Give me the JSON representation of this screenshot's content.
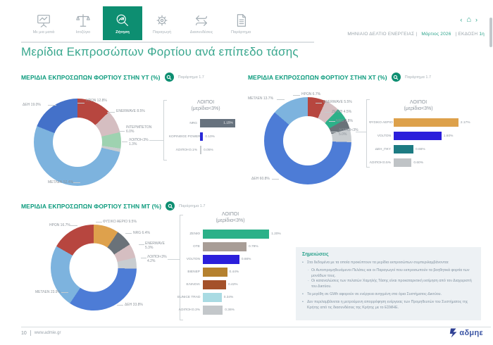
{
  "accent_colors": {
    "active_tab": "#0d8e71",
    "title_green": "#39a78e",
    "section_green": "#0c9b7d"
  },
  "nav": {
    "tabs": [
      {
        "label": "Με μια ματιά",
        "active": false
      },
      {
        "label": "Ισοζύγιο",
        "active": false
      },
      {
        "label": "Ζήτηση",
        "active": true
      },
      {
        "label": "Παραγωγή",
        "active": false
      },
      {
        "label": "Διασυνδέσεις",
        "active": false
      },
      {
        "label": "Παράρτημα",
        "active": false
      }
    ]
  },
  "header": {
    "prev": "‹",
    "home": "⌂",
    "next": "›",
    "bulletin": "ΜΗΝΙΑΙΟ ΔΕΛΤΙΟ  ΕΝΕΡΓΕΙΑΣ",
    "sep1": "|",
    "month": "Μάρτιος 2026",
    "sep2": "|",
    "edition_label": "ΕΚΔΟΣΗ",
    "edition_value": "1η"
  },
  "page": {
    "title": "Μερίδια Εκπροσώπων Φορτίου ανά επίπεδο τάσης"
  },
  "chart_data": [
    {
      "id": "yt-donut",
      "type": "pie",
      "title": "ΜΕΡΙΔΙΑ ΕΚΠΡΟΣΩΠΩΝ ΦΟΡΤΙΟΥ ΣΤΗΝ ΥΤ (%)",
      "appendix": "Παράρτημα 1.7",
      "segments": [
        {
          "name": "ΗΡΩΝ",
          "value": 12.8,
          "display": "ΗΡΩΝ 12.8%",
          "color": "#b7463f"
        },
        {
          "name": "ENERWAVE",
          "value": 8.5,
          "display": "ENERWAVE 8.5%",
          "color": "#d5bec1"
        },
        {
          "name": "ΙΝΤΕΡΜΠΕΤΟΝ",
          "value": 6.0,
          "display": "ΙΝΤΕΡΜΠΕΤΟΝ 6.0%",
          "color": "#9ed2b0"
        },
        {
          "name": "ΛΟΙΠΟΙ<3%",
          "value": 1.3,
          "display": "ΛΟΙΠΟΙ<3% 1.3%",
          "color": "#c9cdd0"
        },
        {
          "name": "ΜΕΤΛΕΝ",
          "value": 52.4,
          "display": "ΜΕΤΛΕΝ 52.4%",
          "color": "#7db3de"
        },
        {
          "name": "ΔΕΗ",
          "value": 19.0,
          "display": "ΔΕΗ 19.0%",
          "color": "#4471c9"
        }
      ]
    },
    {
      "id": "yt-bars",
      "type": "bar",
      "title": "ΛΟΙΠΟΙ",
      "subtitle": "(μερίδια<3%)",
      "xmax": 1.2,
      "items": [
        {
          "name": "NRG",
          "value": 1.15,
          "display": "1.15%",
          "color": "#67727e"
        },
        {
          "name": "ΚΟΡΙΝΘΟΣ POWER",
          "value": 0.1,
          "display": "0.10%",
          "color": "#2a2ad8"
        },
        {
          "name": "ΛΟΙΠΟΙ<0.1%",
          "value": 0.05,
          "display": "0.05%",
          "color": "#c6cacd"
        }
      ]
    },
    {
      "id": "xt-donut",
      "type": "pie",
      "title": "ΜΕΡΙΔΙΑ ΕΚΠΡΟΣΩΠΩΝ ΦΟΡΤΙΟΥ ΣΤΗΝ ΧΤ (%)",
      "appendix": "Παράρτημα 1.7",
      "segments": [
        {
          "name": "ΗΡΩΝ",
          "value": 6.7,
          "display": "ΗΡΩΝ 6.7%",
          "color": "#b7463f"
        },
        {
          "name": "ENERWAVE",
          "value": 5.5,
          "display": "ENERWAVE 5.5%",
          "color": "#d5bec1"
        },
        {
          "name": "ΖΕΝΙΘ",
          "value": 4.5,
          "display": "ΖΕΝΙΘ 4.5%",
          "color": "#2cb189"
        },
        {
          "name": "NRG",
          "value": 3.8,
          "display": "NRG 3.8%",
          "color": "#6a7279"
        },
        {
          "name": "ΛΟΙΠΟΙ<3%",
          "value": 5.0,
          "display": "ΛΟΙΠΟΙ<3% 5.0%",
          "color": "#c9cdd0"
        },
        {
          "name": "ΔΕΗ",
          "value": 60.8,
          "display": "ΔΕΗ 60.8%",
          "color": "#4d7cd6"
        },
        {
          "name": "ΜΕΤΛΕΝ",
          "value": 13.7,
          "display": "ΜΕΤΛΕΝ 13.7%",
          "color": "#7db3de"
        }
      ]
    },
    {
      "id": "xt-bars",
      "type": "bar",
      "title": "ΛΟΙΠΟΙ",
      "subtitle": "(μερίδια<3%)",
      "xmax": 2.36,
      "items": [
        {
          "name": "ΦΥΣΙΚΟ ΑΕΡΙΟ",
          "value": 2.17,
          "display": "2.17%",
          "color": "#dda14b"
        },
        {
          "name": "VOLTON",
          "value": 1.6,
          "display": "1.60%",
          "color": "#2b1fdb"
        },
        {
          "name": "ΔΕΗ_ΠΚΥ",
          "value": 0.66,
          "display": "0.66%",
          "color": "#1d7b82"
        },
        {
          "name": "ΛΟΙΠΟΙ<0.5%",
          "value": 0.6,
          "display": "0.60%",
          "color": "#bfc3c6"
        }
      ]
    },
    {
      "id": "mt-donut",
      "type": "pie",
      "title": "ΜΕΡΙΔΙΑ ΕΚΠΡΟΣΩΠΩΝ ΦΟΡΤΙΟΥ ΣΤΗΝ ΜΤ (%)",
      "appendix": "Παράρτημα 1.7",
      "segments": [
        {
          "name": "ΦΥΣΙΚΟ ΑΕΡΙΟ",
          "value": 9.5,
          "display": "ΦΥΣΙΚΟ ΑΕΡΙΟ 9.5%",
          "color": "#dea14c"
        },
        {
          "name": "NRG",
          "value": 6.4,
          "display": "NRG 6.4%",
          "color": "#6a7279"
        },
        {
          "name": "ENERWAVE",
          "value": 5.3,
          "display": "ENERWAVE 5.3%",
          "color": "#d5bec1"
        },
        {
          "name": "ΛΟΙΠΟΙ<3%",
          "value": 4.2,
          "display": "ΛΟΙΠΟΙ<3% 4.2%",
          "color": "#c9cdd0"
        },
        {
          "name": "ΔΕΗ",
          "value": 33.8,
          "display": "ΔΕΗ 33.8%",
          "color": "#4d7cd6"
        },
        {
          "name": "ΜΕΤΛΕΝ",
          "value": 23.9,
          "display": "ΜΕΤΛΕΝ 23.9%",
          "color": "#7db3de"
        },
        {
          "name": "ΗΡΩΝ",
          "value": 16.7,
          "display": "ΗΡΩΝ 16.7%",
          "color": "#b7463f"
        }
      ]
    },
    {
      "id": "mt-bars",
      "type": "bar",
      "title": "ΛΟΙΠΟΙ",
      "subtitle": "(μερίδια<3%)",
      "xmax": 1.35,
      "items": [
        {
          "name": "ΖΕΝΙΘ",
          "value": 1.2,
          "display": "1.20%",
          "color": "#2cb189"
        },
        {
          "name": "ΟΤΕ",
          "value": 0.79,
          "display": "0.79%",
          "color": "#a89d96"
        },
        {
          "name": "VOLTON",
          "value": 0.66,
          "display": "0.66%",
          "color": "#2b1fdb"
        },
        {
          "name": "ΒΙΕΝΕΡ",
          "value": 0.44,
          "display": "0.44%",
          "color": "#b5812f"
        },
        {
          "name": "ΕΛΙΝΟΙΛ",
          "value": 0.42,
          "display": "0.42%",
          "color": "#a4512a"
        },
        {
          "name": "EUNICE TRAD",
          "value": 0.34,
          "display": "0.34%",
          "color": "#a9dbe3"
        },
        {
          "name": "ΛΟΙΠΟΙ<0.3%",
          "value": 0.36,
          "display": "0.36%",
          "color": "#c3c7ca"
        }
      ]
    }
  ],
  "notes": {
    "heading": "Σημειώσεις",
    "bullet1": "Στα δεδομένα με τα οποία προκύπτουν τα μερίδια εκπροσώπων συμπεριλαμβάνονται:",
    "bullet1_sub1": "Οι Αυτοπρομηθευόμενοι Πελάτες και οι Παραγωγοί που εκπροσωπούν τα βοηθητικά φορτία των μονάδων τους.",
    "bullet1_sub2": "Οι καταναλώσεις των πελατών Χαμηλής Τάσης είναι προκαταρκτική εκτίμηση από τον Διαχειριστή του Δικτύου.",
    "bullet2": "Τα μεγέθη σε GWh αφορούν σε ενέργεια ανηγμένη στα όρια Συστήματος-Δικτύου.",
    "bullet3": "Δεν περιλαμβάνεται η μετρούμενη απορρόφηση ενέργειας των Προμηθευτών του Συστήματος της Κρήτης από τις διασυνδέσεις της Κρήτης με το ΕΣΜΗΕ."
  },
  "footer": {
    "page_number": "10",
    "site": "www.admie.gr",
    "logo_text": "αδμηε"
  }
}
